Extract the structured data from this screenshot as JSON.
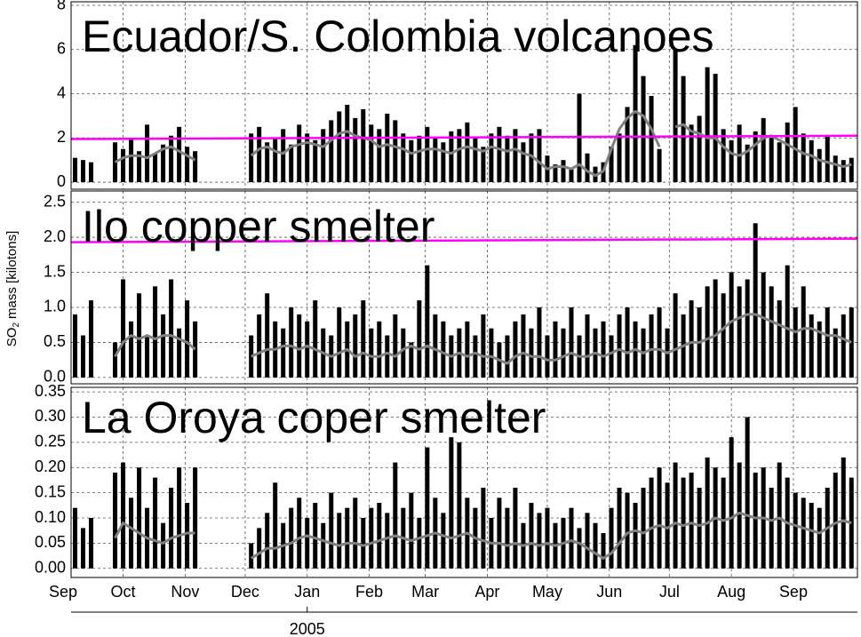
{
  "x_axis": {
    "xlim": [
      4,
      397
    ],
    "x": [
      6,
      10,
      14,
      18,
      22,
      26,
      30,
      34,
      38,
      42,
      46,
      50,
      54,
      58,
      62,
      66,
      70,
      74,
      78,
      82,
      86,
      90,
      94,
      98,
      102,
      106,
      110,
      114,
      118,
      122,
      126,
      130,
      134,
      138,
      142,
      146,
      150,
      154,
      158,
      162,
      166,
      170,
      174,
      178,
      182,
      186,
      190,
      194,
      198,
      202,
      206,
      210,
      214,
      218,
      222,
      226,
      230,
      234,
      238,
      242,
      246,
      250,
      254,
      258,
      262,
      266,
      270,
      274,
      278,
      282,
      286,
      290,
      294,
      298,
      302,
      306,
      310,
      314,
      318,
      322,
      326,
      330,
      334,
      338,
      342,
      346,
      350,
      354,
      358,
      362,
      366,
      370,
      374,
      378,
      382,
      386,
      390,
      394
    ],
    "xticks": [
      {
        "value": 0,
        "label": "Sep"
      },
      {
        "value": 30,
        "label": "Oct"
      },
      {
        "value": 61,
        "label": "Nov"
      },
      {
        "value": 91,
        "label": "Dec"
      },
      {
        "value": 122,
        "label": "Jan"
      },
      {
        "value": 153,
        "label": "Feb"
      },
      {
        "value": 181,
        "label": "Mar"
      },
      {
        "value": 212,
        "label": "Apr"
      },
      {
        "value": 242,
        "label": "May"
      },
      {
        "value": 273,
        "label": "Jun"
      },
      {
        "value": 303,
        "label": "Jul"
      },
      {
        "value": 334,
        "label": "Aug"
      },
      {
        "value": 365,
        "label": "Sep"
      }
    ],
    "year_tick": {
      "value": 122,
      "label": "2005"
    },
    "grid": true
  },
  "ylabel": {
    "main": "SO",
    "sub": "2",
    "rest": "mass [kilotons]"
  },
  "chart_data": [
    {
      "type": "bar",
      "title": "Ecuador/S. Colombia volcanoes",
      "title_color": "#ff0000",
      "color": "#000000",
      "ylim": [
        -0.32,
        8.16
      ],
      "yticks": [
        0,
        2,
        4,
        6,
        8
      ],
      "grid": true,
      "values": [
        1.1,
        1.0,
        0.9,
        null,
        null,
        1.8,
        1.5,
        2.0,
        1.4,
        2.6,
        1.3,
        1.7,
        2.1,
        2.5,
        1.6,
        1.4,
        null,
        null,
        null,
        null,
        null,
        null,
        2.2,
        2.5,
        1.8,
        2.0,
        2.4,
        1.7,
        2.6,
        2.2,
        1.9,
        2.4,
        2.8,
        3.2,
        3.5,
        2.9,
        3.3,
        2.6,
        2.4,
        3.1,
        2.8,
        2.2,
        1.9,
        2.1,
        2.5,
        2.0,
        1.8,
        2.3,
        2.4,
        2.7,
        2.0,
        1.6,
        2.2,
        2.5,
        2.1,
        2.4,
        1.8,
        2.2,
        2.4,
        1.2,
        0.8,
        1.0,
        0.6,
        4.0,
        1.3,
        0.7,
        0.9,
        1.6,
        2.2,
        3.4,
        6.2,
        4.8,
        3.9,
        1.5,
        null,
        6.0,
        4.8,
        2.6,
        3.0,
        5.2,
        4.9,
        2.4,
        1.9,
        2.6,
        1.7,
        2.3,
        2.9,
        2.0,
        1.8,
        2.7,
        3.4,
        2.2,
        1.9,
        1.5,
        2.1,
        1.2,
        1.0,
        1.1
      ],
      "line": {
        "color": "#808080",
        "values": [
          null,
          null,
          null,
          null,
          null,
          0.9,
          1.1,
          1.2,
          1.2,
          1.1,
          1.3,
          1.5,
          1.6,
          1.4,
          1.2,
          1.0,
          null,
          null,
          null,
          null,
          null,
          null,
          1.2,
          1.5,
          1.6,
          1.4,
          1.3,
          1.6,
          1.7,
          1.8,
          1.7,
          1.6,
          1.9,
          2.2,
          2.3,
          2.1,
          2.0,
          1.9,
          1.6,
          1.7,
          1.6,
          1.5,
          1.3,
          1.4,
          1.5,
          1.5,
          1.4,
          1.3,
          1.5,
          1.6,
          1.5,
          1.4,
          1.6,
          1.5,
          1.4,
          1.5,
          1.3,
          1.2,
          0.9,
          0.6,
          0.7,
          0.7,
          0.6,
          0.8,
          0.5,
          0.3,
          0.5,
          1.5,
          2.4,
          2.9,
          3.2,
          3.0,
          2.4,
          1.6,
          null,
          2.5,
          2.6,
          2.3,
          2.2,
          2.0,
          2.0,
          1.6,
          1.3,
          1.2,
          1.4,
          1.7,
          2.0,
          2.1,
          1.9,
          1.7,
          1.5,
          1.3,
          1.2,
          1.0,
          0.9,
          0.8,
          0.7,
          0.8
        ]
      },
      "threshold": {
        "color": "#ff00ff",
        "values": [
          1.95,
          2.1
        ]
      }
    },
    {
      "type": "bar",
      "title": "Ilo copper smelter",
      "title_color": "#ff0000",
      "color": "#000000",
      "ylim": [
        -0.09,
        2.66
      ],
      "yticks": [
        {
          "value": 0,
          "label": "0.0"
        },
        0.5,
        {
          "value": 1,
          "label": "1.0"
        },
        1.5,
        {
          "value": 2,
          "label": "2.0"
        },
        2.5
      ],
      "grid": true,
      "values": [
        0.9,
        0.6,
        1.1,
        null,
        null,
        0.5,
        1.4,
        0.8,
        1.2,
        0.6,
        1.3,
        0.9,
        1.4,
        0.7,
        1.1,
        0.8,
        null,
        null,
        null,
        null,
        null,
        null,
        0.6,
        0.9,
        1.2,
        0.8,
        0.7,
        1.0,
        0.9,
        0.8,
        1.1,
        0.7,
        0.6,
        1.0,
        0.8,
        0.9,
        1.1,
        0.7,
        0.8,
        0.6,
        0.9,
        0.7,
        0.5,
        1.1,
        1.6,
        0.9,
        0.8,
        0.6,
        0.7,
        0.8,
        0.6,
        0.9,
        0.7,
        0.5,
        0.6,
        0.8,
        0.9,
        0.7,
        1.0,
        0.6,
        0.8,
        0.7,
        1.0,
        0.6,
        0.9,
        0.7,
        0.8,
        0.6,
        0.9,
        1.0,
        0.8,
        0.7,
        0.9,
        1.0,
        0.7,
        1.2,
        0.9,
        1.1,
        1.0,
        1.3,
        1.4,
        1.2,
        1.5,
        1.3,
        1.4,
        2.2,
        1.5,
        1.3,
        1.1,
        1.6,
        1.0,
        1.3,
        0.9,
        0.8,
        1.0,
        0.7,
        0.9,
        1.0
      ],
      "line": {
        "color": "#808080",
        "values": [
          null,
          null,
          null,
          null,
          null,
          0.3,
          0.5,
          0.6,
          0.55,
          0.6,
          0.55,
          0.6,
          0.6,
          0.55,
          0.5,
          0.4,
          null,
          null,
          null,
          null,
          null,
          null,
          0.3,
          0.35,
          0.4,
          0.4,
          0.45,
          0.45,
          0.4,
          0.45,
          0.4,
          0.35,
          0.3,
          0.35,
          0.4,
          0.3,
          0.35,
          0.3,
          0.3,
          0.35,
          0.3,
          0.4,
          0.45,
          0.4,
          0.45,
          0.4,
          0.35,
          0.3,
          0.35,
          0.3,
          0.35,
          0.3,
          0.3,
          0.25,
          0.2,
          0.3,
          0.35,
          0.3,
          0.3,
          0.25,
          0.25,
          0.3,
          0.35,
          0.3,
          0.3,
          0.35,
          0.3,
          0.35,
          0.4,
          0.35,
          0.4,
          0.35,
          0.4,
          0.4,
          0.35,
          0.4,
          0.45,
          0.5,
          0.5,
          0.55,
          0.6,
          0.7,
          0.8,
          0.85,
          0.9,
          0.9,
          0.85,
          0.8,
          0.75,
          0.7,
          0.65,
          0.7,
          0.7,
          0.65,
          0.6,
          0.6,
          0.55,
          0.5
        ]
      },
      "threshold": {
        "color": "#ff00ff",
        "values": [
          1.93,
          1.98
        ]
      }
    },
    {
      "type": "bar",
      "title": "La Oroya coper smelter",
      "title_color": "#ff0000",
      "color": "#000000",
      "ylim": [
        -0.018,
        0.359
      ],
      "yticks": [
        {
          "value": 0,
          "label": "0.00"
        },
        0.05,
        {
          "value": 0.1,
          "label": "0.10"
        },
        0.15,
        {
          "value": 0.2,
          "label": "0.20"
        },
        0.25,
        {
          "value": 0.3,
          "label": "0.30"
        },
        0.35
      ],
      "grid": true,
      "values": [
        0.12,
        0.08,
        0.1,
        null,
        null,
        0.19,
        0.21,
        0.14,
        0.2,
        0.12,
        0.18,
        0.09,
        0.16,
        0.2,
        0.13,
        0.2,
        null,
        null,
        null,
        null,
        null,
        null,
        0.05,
        0.08,
        0.11,
        0.17,
        0.09,
        0.12,
        0.14,
        0.1,
        0.13,
        0.09,
        0.15,
        0.11,
        0.12,
        0.14,
        0.1,
        0.12,
        0.13,
        0.11,
        0.21,
        0.12,
        0.15,
        0.1,
        0.24,
        0.14,
        0.11,
        0.26,
        0.25,
        0.14,
        0.12,
        0.16,
        0.1,
        0.14,
        0.12,
        0.16,
        0.09,
        0.13,
        0.11,
        0.12,
        0.09,
        0.1,
        0.12,
        0.08,
        0.11,
        0.09,
        0.07,
        0.12,
        0.16,
        0.15,
        0.13,
        0.16,
        0.18,
        0.2,
        0.17,
        0.21,
        0.18,
        0.19,
        0.16,
        0.22,
        0.2,
        0.18,
        0.26,
        0.21,
        0.3,
        0.19,
        0.2,
        0.16,
        0.21,
        0.18,
        0.15,
        0.14,
        0.13,
        0.12,
        0.16,
        0.19,
        0.22,
        0.18
      ],
      "line": {
        "color": "#808080",
        "values": [
          null,
          null,
          null,
          null,
          null,
          0.06,
          0.09,
          0.08,
          0.07,
          0.06,
          0.055,
          0.05,
          0.06,
          0.065,
          0.07,
          0.07,
          null,
          null,
          null,
          null,
          null,
          null,
          0.02,
          0.03,
          0.04,
          0.04,
          0.045,
          0.05,
          0.06,
          0.065,
          0.06,
          0.055,
          0.05,
          0.045,
          0.05,
          0.05,
          0.045,
          0.05,
          0.055,
          0.06,
          0.065,
          0.06,
          0.055,
          0.06,
          0.065,
          0.07,
          0.065,
          0.06,
          0.065,
          0.07,
          0.06,
          0.055,
          0.05,
          0.05,
          0.045,
          0.05,
          0.045,
          0.05,
          0.045,
          0.05,
          0.045,
          0.05,
          0.055,
          0.05,
          0.04,
          0.03,
          0.02,
          0.03,
          0.05,
          0.07,
          0.075,
          0.07,
          0.08,
          0.085,
          0.08,
          0.09,
          0.085,
          0.09,
          0.085,
          0.09,
          0.1,
          0.095,
          0.1,
          0.11,
          0.105,
          0.1,
          0.1,
          0.095,
          0.1,
          0.09,
          0.085,
          0.08,
          0.075,
          0.07,
          0.08,
          0.09,
          0.095,
          0.09
        ]
      }
    }
  ]
}
